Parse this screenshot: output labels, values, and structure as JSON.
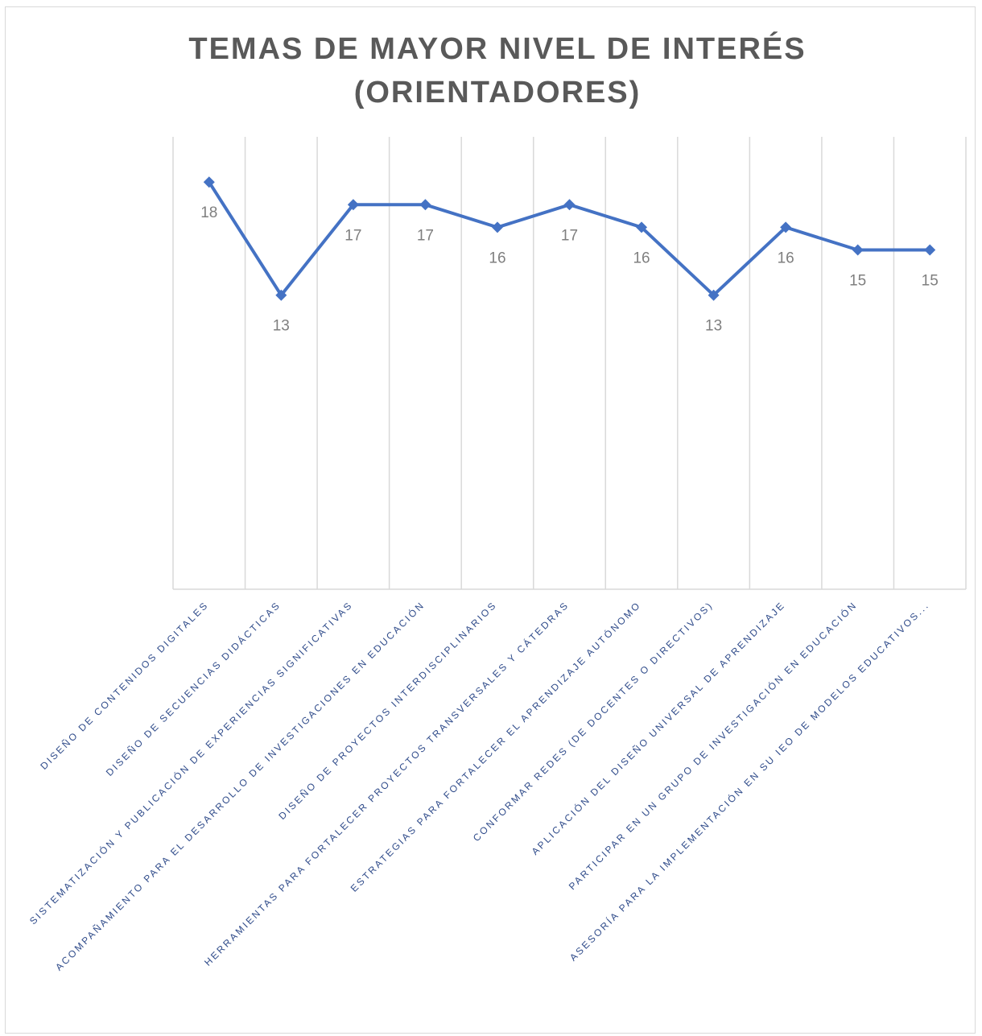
{
  "chart_data": {
    "type": "line",
    "title": "TEMAS DE MAYOR NIVEL DE INTERÉS (ORIENTADORES)",
    "categories": [
      "DISEÑO DE CONTENIDOS DIGITALES",
      "DISEÑO DE SECUENCIAS DIDÁCTICAS",
      "SISTEMATIZACIÓN Y PUBLICACIÓN DE EXPERIENCIAS SIGNIFICATIVAS",
      "ACOMPAÑAMIENTO PARA EL DESARROLLO DE INVESTIGACIONES EN EDUCACIÓN",
      "DISEÑO DE PROYECTOS INTERDISCIPLINARIOS",
      "HERRAMIENTAS PARA FORTALECER PROYECTOS TRANSVERSALES Y CÁTEDRAS",
      "ESTRATEGIAS PARA FORTALECER EL APRENDIZAJE AUTÓNOMO",
      "CONFORMAR REDES (DE DOCENTES O DIRECTIVOS)",
      "APLICACIÓN DEL DISEÑO UNIVERSAL DE APRENDIZAJE",
      "PARTICIPAR EN UN GRUPO DE INVESTIGACIÓN EN EDUCACIÓN",
      "ASESORÍA PARA LA IMPLEMENTACIÓN EN SU IEO DE MODELOS EDUCATIVOS..."
    ],
    "values": [
      18,
      13,
      17,
      17,
      16,
      17,
      16,
      13,
      16,
      15,
      15
    ],
    "color": "#4472c4",
    "ylim": [
      0,
      20
    ]
  }
}
